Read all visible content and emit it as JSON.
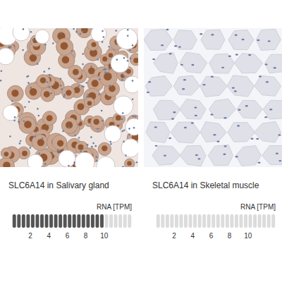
{
  "chart_data": [
    {
      "type": "bar",
      "orientation": "horizontal",
      "title": "SLC6A14 in Salivary gland",
      "xlabel": "RNA [TPM]",
      "values": [
        10.2
      ],
      "xlim": [
        0,
        13
      ],
      "xticks": [
        2,
        4,
        6,
        8,
        10
      ],
      "color": "#555555"
    },
    {
      "type": "bar",
      "orientation": "horizontal",
      "title": "SLC6A14 in Skeletal muscle",
      "xlabel": "RNA [TPM]",
      "values": [
        0
      ],
      "xlim": [
        0,
        13
      ],
      "xticks": [
        2,
        4,
        6,
        8,
        10
      ],
      "color": "#555555"
    }
  ]
}
